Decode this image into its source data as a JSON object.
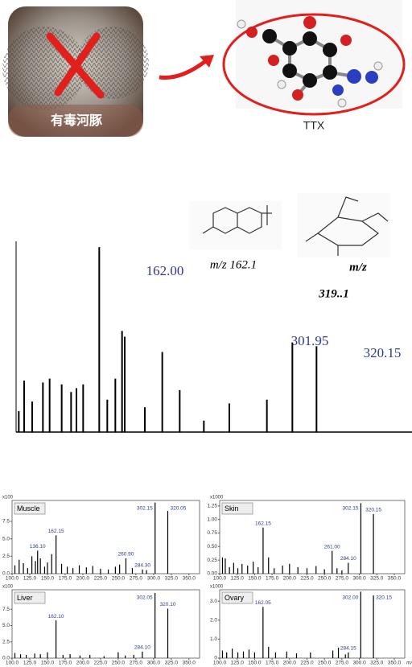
{
  "figure": {
    "fish_label": "有毒河豚",
    "toxin_label": "TTX"
  },
  "chart_data": [
    {
      "type": "spectrum",
      "xlim": [
        96,
        405
      ],
      "ylim": [
        0,
        100
      ],
      "peak_labels": [
        "162.00",
        "301.95",
        "320.15"
      ],
      "structure_labels": [
        "m/z 162.1",
        "m/z",
        "319..1"
      ],
      "series": [
        {
          "color": "#000000",
          "x": [
            98,
            102,
            108,
            116,
            121,
            130,
            137,
            141,
            146,
            158,
            164,
            170,
            175,
            177,
            192,
            205,
            218,
            236,
            255,
            283,
            302,
            320
          ],
          "values": [
            11,
            27,
            16,
            26,
            28,
            25,
            21,
            23,
            25,
            97,
            17,
            28,
            53,
            50,
            13,
            42,
            22,
            6,
            15,
            17,
            47,
            45
          ]
        }
      ]
    },
    {
      "type": "spectrum",
      "title": "Muscle",
      "scale_label": "x100",
      "xlim": [
        100,
        365
      ],
      "ylim": [
        0,
        10.5
      ],
      "xticks": [
        {
          "value": 100,
          "label": "100.0"
        },
        {
          "value": 125,
          "label": "125.0"
        },
        {
          "value": 150,
          "label": "150.0"
        },
        {
          "value": 175,
          "label": "175.0"
        },
        {
          "value": 200,
          "label": "200.0"
        },
        {
          "value": 225,
          "label": "225.0"
        },
        {
          "value": 250,
          "label": "250.0"
        },
        {
          "value": 275,
          "label": "275.0"
        },
        {
          "value": 300,
          "label": "300.0"
        },
        {
          "value": 325,
          "label": "325.0"
        },
        {
          "value": 350,
          "label": "350.0"
        }
      ],
      "yticks": [
        {
          "value": 0,
          "label": "0.0"
        },
        2.5,
        {
          "value": 5,
          "label": "5.0"
        },
        7.5
      ],
      "label_color": "#2b3990",
      "series": [
        {
          "color": "#000000",
          "x": [
            104,
            110,
            116,
            122,
            128,
            133,
            140,
            146,
            150,
            156,
            170,
            178,
            186,
            195,
            205,
            214,
            225,
            236,
            246,
            252,
            270,
            290
          ],
          "values": [
            1.2,
            2.0,
            1.5,
            0.8,
            2.5,
            1.8,
            2.2,
            1.0,
            1.6,
            2.8,
            1.4,
            1.0,
            0.8,
            1.2,
            0.9,
            1.1,
            0.7,
            0.6,
            1.0,
            1.3,
            0.8,
            0.5
          ]
        },
        {
          "color": "#000000",
          "x": [
            136.1,
            162.15,
            260.9,
            284.3,
            302.15,
            320.05
          ],
          "values": [
            3.3,
            5.5,
            2.2,
            0.6,
            10.2,
            9.0
          ],
          "peak_labels": [
            "136.10",
            "162.15",
            "260.90",
            "284.30",
            "302.15",
            "320.05"
          ]
        }
      ]
    },
    {
      "type": "spectrum",
      "title": "Skin",
      "scale_label": "x1000",
      "xlim": [
        100,
        365
      ],
      "ylim": [
        0,
        1.35
      ],
      "xticks": [
        {
          "value": 100,
          "label": "100.0"
        },
        {
          "value": 125,
          "label": "125.0"
        },
        {
          "value": 150,
          "label": "150.0"
        },
        {
          "value": 175,
          "label": "175.0"
        },
        {
          "value": 200,
          "label": "200.0"
        },
        {
          "value": 225,
          "label": "225.0"
        },
        {
          "value": 250,
          "label": "250.0"
        },
        {
          "value": 275,
          "label": "275.0"
        },
        {
          "value": 300,
          "label": "300.0"
        },
        {
          "value": 325,
          "label": "325.0"
        },
        {
          "value": 350,
          "label": "350.0"
        }
      ],
      "yticks": [
        {
          "value": 0,
          "label": "0.00"
        },
        0.25,
        {
          "value": 0.5,
          "label": "0.50"
        },
        0.75,
        {
          "value": 1,
          "label": "1.00"
        },
        1.25
      ],
      "label_color": "#2b3990",
      "series": [
        {
          "color": "#000000",
          "x": [
            104,
            108,
            114,
            120,
            126,
            132,
            140,
            148,
            155,
            170,
            178,
            190,
            200,
            212,
            225,
            238,
            250,
            268,
            275
          ],
          "values": [
            0.3,
            0.28,
            0.12,
            0.2,
            0.1,
            0.18,
            0.15,
            0.22,
            0.12,
            0.3,
            0.1,
            0.15,
            0.18,
            0.12,
            0.1,
            0.14,
            0.08,
            0.1,
            0.06
          ]
        },
        {
          "color": "#000000",
          "x": [
            162.15,
            261.0,
            284.1,
            302.15,
            320.15
          ],
          "values": [
            0.85,
            0.42,
            0.2,
            1.3,
            1.1
          ],
          "peak_labels": [
            "162.15",
            "261.00",
            "284.10",
            "302.15",
            "320.15"
          ]
        }
      ]
    },
    {
      "type": "spectrum",
      "title": "Liver",
      "scale_label": "x100",
      "xlim": [
        100,
        365
      ],
      "ylim": [
        0,
        10.5
      ],
      "xticks": [
        {
          "value": 100,
          "label": "100.0"
        },
        {
          "value": 125,
          "label": "125.0"
        },
        {
          "value": 150,
          "label": "150.0"
        },
        {
          "value": 175,
          "label": "175.0"
        },
        {
          "value": 200,
          "label": "200.0"
        },
        {
          "value": 225,
          "label": "225.0"
        },
        {
          "value": 250,
          "label": "250.0"
        },
        {
          "value": 275,
          "label": "275.0"
        },
        {
          "value": 300,
          "label": "300.0"
        },
        {
          "value": 325,
          "label": "325.0"
        },
        {
          "value": 350,
          "label": "350.0"
        }
      ],
      "yticks": [
        {
          "value": 0,
          "label": "0.0"
        },
        2.5,
        {
          "value": 5,
          "label": "5.0"
        },
        7.5
      ],
      "label_color": "#2b3990",
      "series": [
        {
          "color": "#000000",
          "x": [
            104,
            112,
            120,
            132,
            140,
            150,
            172,
            182,
            196,
            210,
            230,
            250,
            260,
            272
          ],
          "values": [
            0.8,
            0.6,
            0.5,
            0.7,
            0.6,
            0.9,
            0.5,
            0.6,
            0.4,
            0.5,
            0.3,
            0.9,
            0.4,
            0.5
          ]
        },
        {
          "color": "#000000",
          "x": [
            162.1,
            284.1,
            302.05,
            320.1
          ],
          "values": [
            5.8,
            1.0,
            10,
            7.6
          ],
          "peak_labels": [
            "162.10",
            "284.10",
            "302.05",
            "320.10"
          ]
        }
      ]
    },
    {
      "type": "spectrum",
      "title": "Ovary",
      "scale_label": "x1000",
      "xlim": [
        100,
        365
      ],
      "ylim": [
        0,
        3.6
      ],
      "xlabel": "m/z",
      "xticks": [
        {
          "value": 100,
          "label": "100.0"
        },
        {
          "value": 125,
          "label": "125.0"
        },
        {
          "value": 150,
          "label": "150.0"
        },
        {
          "value": 175,
          "label": "175.0"
        },
        {
          "value": 200,
          "label": "200.0"
        },
        {
          "value": 225,
          "label": "225.0"
        },
        {
          "value": 250,
          "label": "250.0"
        },
        {
          "value": 275,
          "label": "275.0"
        },
        {
          "value": 300,
          "label": "300.0"
        },
        {
          "value": 325,
          "label": "325.0"
        },
        {
          "value": 350,
          "label": "350.0"
        }
      ],
      "yticks": [
        0,
        {
          "value": 1,
          "label": "1.0"
        },
        {
          "value": 2,
          "label": "2.0"
        },
        {
          "value": 3,
          "label": "3.0"
        }
      ],
      "label_color": "#2b3990",
      "series": [
        {
          "color": "#000000",
          "x": [
            104,
            110,
            118,
            126,
            134,
            142,
            150,
            170,
            180,
            196,
            210,
            230,
            262,
            270,
            280
          ],
          "values": [
            0.4,
            0.3,
            0.5,
            0.3,
            0.35,
            0.45,
            0.3,
            0.6,
            0.3,
            0.35,
            0.25,
            0.3,
            0.4,
            0.55,
            0.2
          ]
        },
        {
          "color": "#000000",
          "x": [
            162.05,
            284.15,
            302.0,
            320.15
          ],
          "values": [
            2.7,
            0.3,
            3.5,
            3.3
          ],
          "peak_labels": [
            "162.05",
            "284.15",
            "302.00",
            "320.15"
          ]
        }
      ]
    }
  ]
}
